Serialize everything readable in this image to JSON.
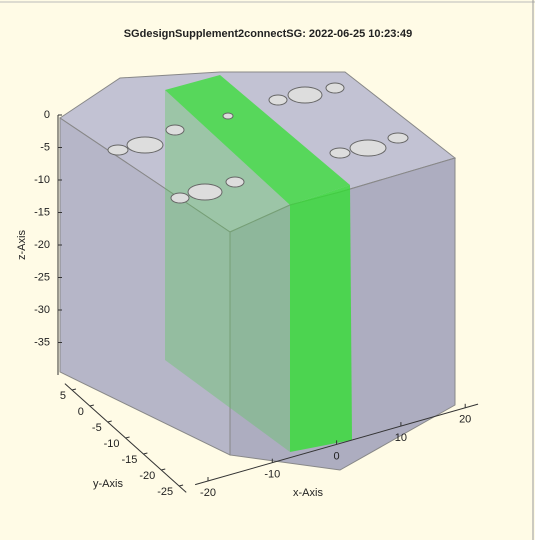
{
  "chart_data": {
    "type": "surface3d",
    "title": "SGdesignSupplement2connectSG: 2022-06-25 10:23:49",
    "xlabel": "x-Axis",
    "ylabel": "y-Axis",
    "zlabel": "z-Axis",
    "xlim": [
      -22,
      22
    ],
    "ylim": [
      -27,
      7
    ],
    "zlim": [
      -40,
      0
    ],
    "xticks": [
      -20,
      -10,
      0,
      10,
      20
    ],
    "yticks": [
      -25,
      -20,
      -15,
      -10,
      -5,
      0,
      5
    ],
    "zticks": [
      -35,
      -30,
      -25,
      -20,
      -15,
      -10,
      -5,
      0
    ]
  }
}
